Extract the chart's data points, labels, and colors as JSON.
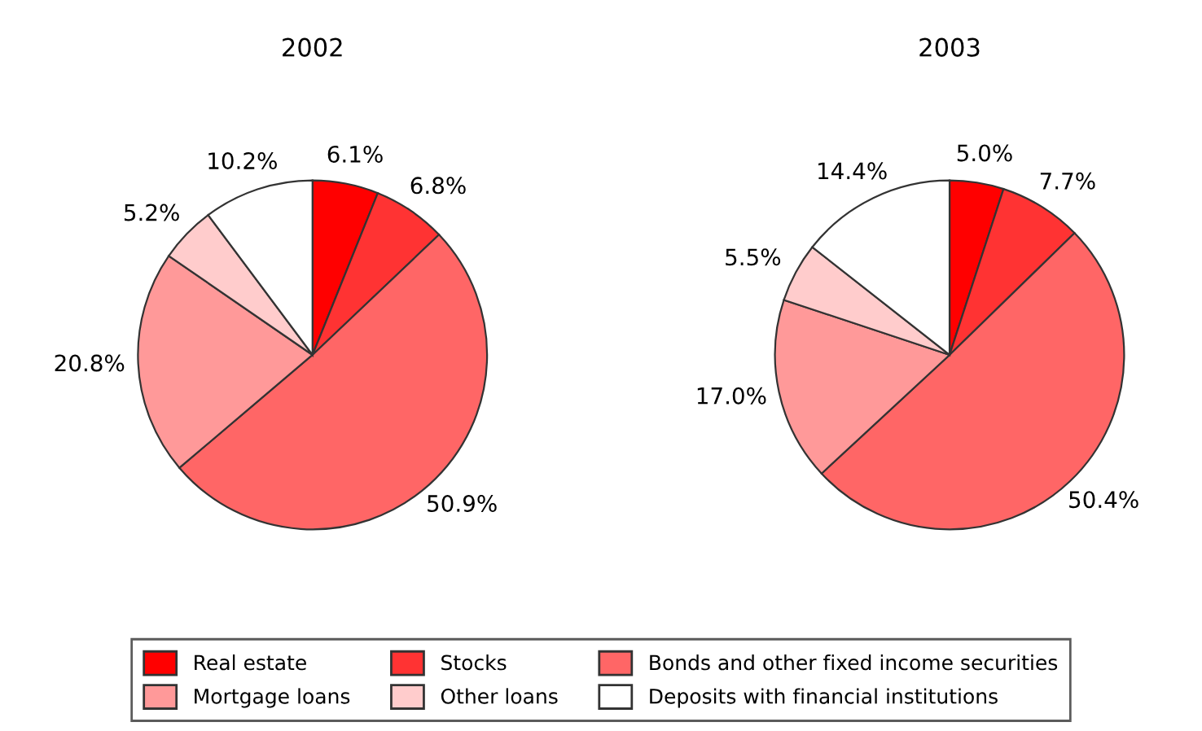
{
  "chart_data": [
    {
      "type": "pie",
      "title": "2002",
      "categories": [
        "Real estate",
        "Stocks",
        "Bonds and other fixed income securities",
        "Mortgage loans",
        "Other loans",
        "Deposits with financial institutions"
      ],
      "values": [
        6.1,
        6.8,
        50.9,
        20.8,
        5.2,
        10.2
      ],
      "value_labels": [
        "6.1%",
        "6.8%",
        "50.9%",
        "20.8%",
        "5.2%",
        "10.2%"
      ],
      "colors": [
        "#ff0000",
        "#ff3333",
        "#ff6666",
        "#ff9999",
        "#ffcccc",
        "#ffffff"
      ],
      "legend": "bottom"
    },
    {
      "type": "pie",
      "title": "2003",
      "categories": [
        null,
        null,
        null,
        null,
        null,
        null
      ],
      "values": [
        5.0,
        7.7,
        50.4,
        17.0,
        5.5,
        14.4
      ],
      "value_labels": [
        "5.0%",
        "7.7%",
        "50.4%",
        "17.0%",
        "5.5%",
        "14.4%"
      ],
      "colors": [
        "#ff0000",
        "#ff3333",
        "#ff6666",
        "#ff9999",
        "#ffcccc",
        "#ffffff"
      ]
    }
  ]
}
